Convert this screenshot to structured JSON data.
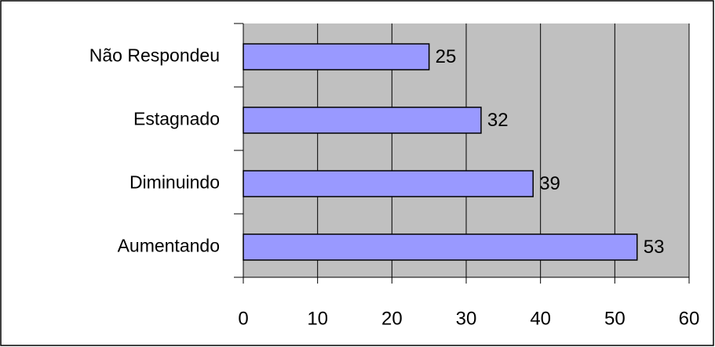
{
  "chart_data": {
    "type": "bar",
    "orientation": "horizontal",
    "categories": [
      "Não Respondeu",
      "Estagnado",
      "Diminuindo",
      "Aumentando"
    ],
    "values": [
      25,
      32,
      39,
      53
    ],
    "color": "#9999ff",
    "xlim": [
      0,
      60
    ],
    "xticks": [
      0,
      10,
      20,
      30,
      40,
      50,
      60
    ],
    "grid": true
  }
}
